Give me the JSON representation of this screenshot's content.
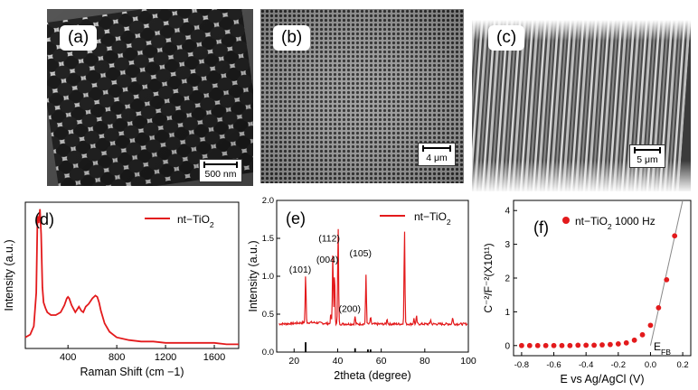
{
  "panels_top": {
    "a": {
      "label": "(a)",
      "scale": "500 nm"
    },
    "b": {
      "label": "(b)",
      "scale": "4 μm"
    },
    "c": {
      "label": "(c)",
      "scale": "5 μm"
    }
  },
  "colors": {
    "series": "#e31a1c",
    "sem_dark": "#3a3a3a"
  },
  "chart_data": [
    {
      "type": "line",
      "panel_label": "(d)",
      "xlabel": "Raman Shift (cm −1)",
      "ylabel": "Intensity (a.u.)",
      "xlim": [
        50,
        1800
      ],
      "xticks": [
        "400",
        "800",
        "1200",
        "1600"
      ],
      "legend": "nt−TiO2",
      "series": [
        {
          "name": "nt−TiO2",
          "x": [
            50,
            90,
            120,
            140,
            150,
            160,
            170,
            180,
            190,
            200,
            215,
            230,
            260,
            300,
            340,
            370,
            390,
            400,
            410,
            430,
            460,
            490,
            510,
            525,
            545,
            570,
            600,
            625,
            640,
            655,
            670,
            700,
            740,
            800,
            900,
            1000,
            1100,
            1200,
            1300,
            1400,
            1500,
            1600,
            1700,
            1800
          ],
          "y": [
            8,
            10,
            16,
            40,
            95,
            90,
            100,
            82,
            44,
            33,
            29,
            26,
            24,
            24,
            26,
            31,
            36,
            37,
            36,
            31,
            26,
            30,
            27,
            26,
            30,
            32,
            36,
            38,
            37,
            33,
            27,
            18,
            12,
            8,
            6,
            5,
            5,
            4,
            4,
            4,
            4,
            4,
            3,
            3
          ]
        }
      ]
    },
    {
      "type": "line",
      "panel_label": "(e)",
      "xlabel": "2theta (degree)",
      "ylabel": "Intensity (a.u.)",
      "xlim": [
        12,
        100
      ],
      "ylim": [
        0,
        2.0
      ],
      "xticks": [
        20,
        40,
        60,
        80,
        100
      ],
      "yticks": [
        "0.0",
        "0.5",
        "1.0",
        "1.5",
        "2.0"
      ],
      "legend": "nt−TiO2",
      "baseline": 0.37,
      "peaks": [
        {
          "x": 25.3,
          "y": 1.0
        },
        {
          "x": 36.9,
          "y": 0.5
        },
        {
          "x": 37.8,
          "y": 1.3
        },
        {
          "x": 38.6,
          "y": 1.05
        },
        {
          "x": 40.2,
          "y": 1.65
        },
        {
          "x": 48.0,
          "y": 0.47
        },
        {
          "x": 53.0,
          "y": 1.02
        },
        {
          "x": 55.1,
          "y": 0.46
        },
        {
          "x": 62.7,
          "y": 0.44
        },
        {
          "x": 70.7,
          "y": 1.62
        },
        {
          "x": 75.0,
          "y": 0.44
        },
        {
          "x": 76.2,
          "y": 0.47
        },
        {
          "x": 82.7,
          "y": 0.43
        },
        {
          "x": 92.8,
          "y": 0.46
        }
      ],
      "reference_lines": [
        {
          "x": 25.3,
          "h": 0.13
        },
        {
          "x": 48.0,
          "h": 0.05
        },
        {
          "x": 53.9,
          "h": 0.035
        },
        {
          "x": 55.1,
          "h": 0.035
        }
      ],
      "annotations": [
        {
          "text": "(101)",
          "x": 25.3,
          "y": 1.05
        },
        {
          "text": "(004)",
          "x": 37.8,
          "y": 1.18
        },
        {
          "text": "(112)",
          "x": 38.6,
          "y": 1.46
        },
        {
          "text": "(200)",
          "x": 48.0,
          "y": 0.53
        },
        {
          "text": "(105)",
          "x": 53.0,
          "y": 1.26
        }
      ]
    },
    {
      "type": "scatter",
      "panel_label": "(f)",
      "xlabel": "E vs Ag/AgCl (V)",
      "ylabel": "C⁻²/F⁻²(X10¹¹)",
      "xlim": [
        -0.85,
        0.25
      ],
      "ylim": [
        -0.3,
        4.3
      ],
      "xticks": [
        "-0.8",
        "-0.6",
        "-0.4",
        "-0.2",
        "0.0",
        "0.2"
      ],
      "yticks": [
        "0",
        "1",
        "2",
        "3",
        "4"
      ],
      "legend": "nt−TiO2 1000 Hz",
      "efb_label": "E",
      "efb_sub": "FB",
      "series": [
        {
          "name": "nt−TiO2 1000 Hz",
          "x": [
            -0.8,
            -0.75,
            -0.7,
            -0.65,
            -0.6,
            -0.55,
            -0.5,
            -0.45,
            -0.4,
            -0.35,
            -0.3,
            -0.25,
            -0.2,
            -0.15,
            -0.1,
            -0.05,
            0.0,
            0.05,
            0.1,
            0.15
          ],
          "y": [
            0,
            0,
            0,
            0,
            0,
            0,
            0,
            0.01,
            0.01,
            0.01,
            0.02,
            0.03,
            0.05,
            0.08,
            0.16,
            0.32,
            0.6,
            1.12,
            1.95,
            3.25
          ]
        }
      ],
      "fit_line": {
        "x": [
          0.0,
          0.2
        ],
        "y": [
          0.0,
          4.3
        ]
      }
    }
  ]
}
